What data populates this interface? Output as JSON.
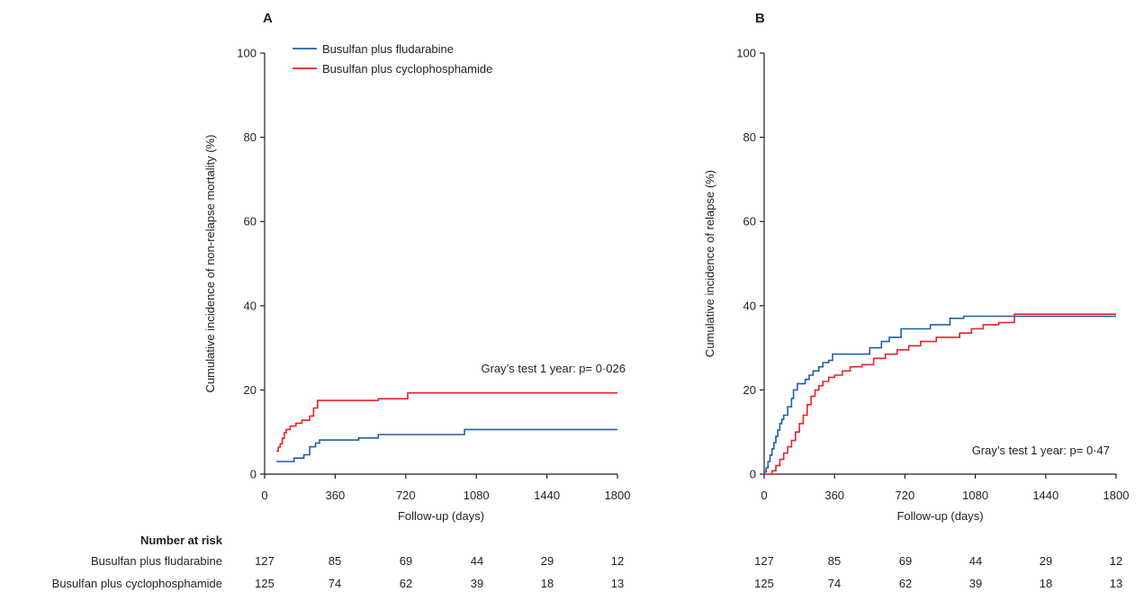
{
  "chart_data": [
    {
      "type": "line",
      "panel_label": "A",
      "ylabel": "Cumulative incidence of non-relapse mortality (%)",
      "xlabel": "Follow-up (days)",
      "xlim": [
        0,
        1800
      ],
      "ylim": [
        0,
        100
      ],
      "xticks": [
        0,
        360,
        720,
        1080,
        1440,
        1800
      ],
      "yticks": [
        0,
        20,
        40,
        60,
        80,
        100
      ],
      "grid": false,
      "legend_position": "top-left",
      "annotation": "Gray’s test 1 year: p= 0·026",
      "series": [
        {
          "name": "Busulfan plus fludarabine",
          "color": "#1f5fa8",
          "step": true,
          "x": [
            60,
            150,
            200,
            230,
            260,
            280,
            300,
            480,
            580,
            1020,
            1800
          ],
          "y": [
            3.0,
            3.8,
            4.6,
            6.5,
            7.4,
            8.1,
            8.1,
            8.6,
            9.4,
            10.6,
            10.6
          ]
        },
        {
          "name": "Busulfan plus cyclophosphamide",
          "color": "#e8212c",
          "step": true,
          "x": [
            60,
            70,
            80,
            90,
            100,
            110,
            130,
            160,
            190,
            230,
            250,
            270,
            300,
            580,
            730,
            1800
          ],
          "y": [
            5.5,
            6.4,
            7.2,
            8.5,
            9.8,
            10.6,
            11.4,
            12.1,
            12.8,
            13.8,
            15.7,
            17.5,
            17.5,
            17.9,
            19.3,
            19.3
          ]
        }
      ],
      "number_at_risk": {
        "heading": "Number at risk",
        "rows": [
          {
            "label": "Busulfan plus fludarabine",
            "values": [
              "127",
              "85",
              "69",
              "44",
              "29",
              "12"
            ]
          },
          {
            "label": "Busulfan plus cyclophosphamide",
            "values": [
              "125",
              "74",
              "62",
              "39",
              "18",
              "13"
            ]
          }
        ]
      }
    },
    {
      "type": "line",
      "panel_label": "B",
      "ylabel": "Cumulative incidence of relapse (%)",
      "xlabel": "Follow-up (days)",
      "xlim": [
        0,
        1800
      ],
      "ylim": [
        0,
        100
      ],
      "xticks": [
        0,
        360,
        720,
        1080,
        1440,
        1800
      ],
      "yticks": [
        0,
        20,
        40,
        60,
        80,
        100
      ],
      "grid": false,
      "annotation": "Gray’s test 1 year: p= 0·47",
      "series": [
        {
          "color": "#1f5fa8",
          "step": true,
          "x": [
            0,
            10,
            20,
            30,
            40,
            50,
            60,
            70,
            80,
            90,
            100,
            120,
            140,
            150,
            170,
            190,
            210,
            230,
            250,
            280,
            300,
            330,
            350,
            380,
            400,
            420,
            460,
            540,
            600,
            640,
            700,
            750,
            850,
            950,
            1020,
            1800
          ],
          "y": [
            0.5,
            1.5,
            3.0,
            4.5,
            6.0,
            7.5,
            9.0,
            10.5,
            12.0,
            13.0,
            14.0,
            16.0,
            18.0,
            20.0,
            21.5,
            21.5,
            22.5,
            23.5,
            24.5,
            25.5,
            26.5,
            27.0,
            28.5,
            28.5,
            28.5,
            28.5,
            28.5,
            30.0,
            31.5,
            32.5,
            34.5,
            34.5,
            35.5,
            37.0,
            37.5,
            37.5
          ]
        },
        {
          "color": "#e8212c",
          "step": true,
          "x": [
            0,
            40,
            60,
            80,
            100,
            120,
            140,
            160,
            180,
            200,
            220,
            240,
            260,
            280,
            300,
            330,
            360,
            400,
            440,
            500,
            560,
            620,
            680,
            740,
            800,
            880,
            1000,
            1060,
            1120,
            1200,
            1280,
            1800
          ],
          "y": [
            0,
            0.8,
            2.0,
            3.5,
            5.0,
            6.5,
            8.0,
            10.0,
            12.0,
            14.0,
            16.5,
            18.5,
            20.0,
            21.0,
            22.0,
            23.0,
            23.5,
            24.5,
            25.5,
            26.0,
            27.5,
            28.5,
            29.5,
            30.5,
            31.5,
            32.5,
            33.5,
            34.5,
            35.5,
            36.0,
            38.0,
            38.0
          ]
        }
      ],
      "number_at_risk": {
        "rows": [
          {
            "values": [
              "127",
              "85",
              "69",
              "44",
              "29",
              "12"
            ]
          },
          {
            "values": [
              "125",
              "74",
              "62",
              "39",
              "18",
              "13"
            ]
          }
        ]
      }
    }
  ]
}
